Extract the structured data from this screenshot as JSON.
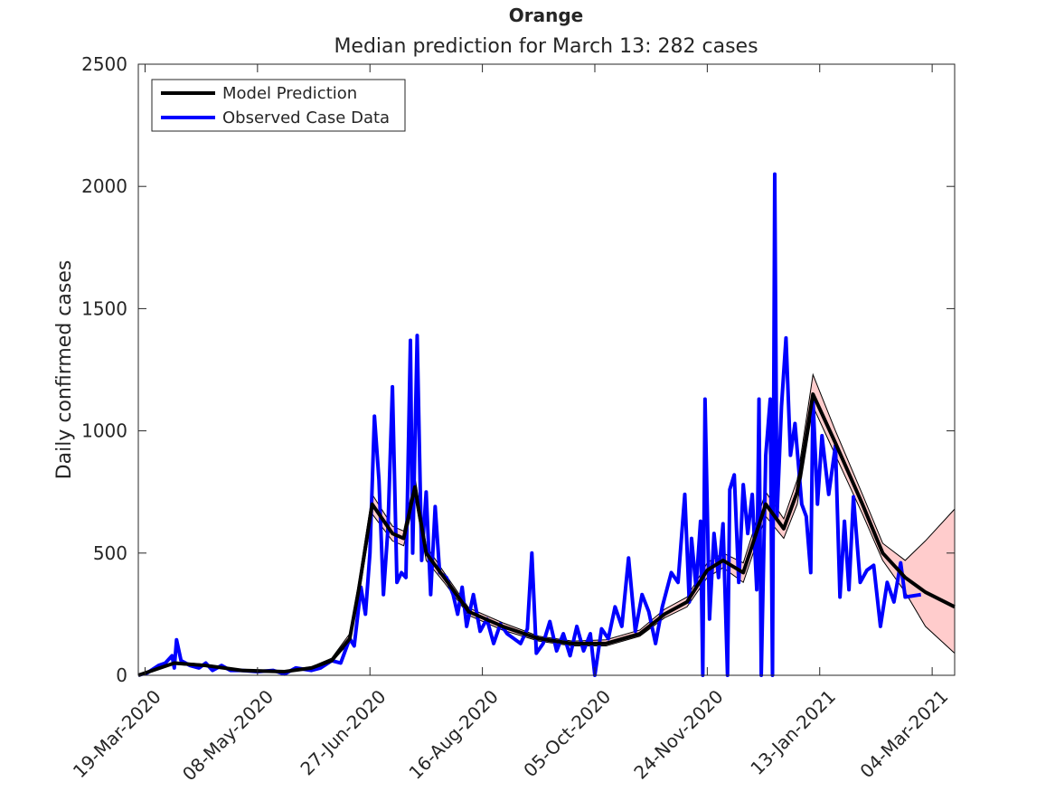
{
  "chart_data": {
    "type": "line",
    "title": "Orange",
    "subtitle": "Median prediction for March 13: 282 cases",
    "ylabel": "Daily confirmed cases",
    "xlim": [
      "2020-03-16",
      "2021-03-14"
    ],
    "xticks": [
      {
        "value": "2020-03-19",
        "label": "19-Mar-2020"
      },
      {
        "value": "2020-05-08",
        "label": "08-May-2020"
      },
      {
        "value": "2020-06-27",
        "label": "27-Jun-2020"
      },
      {
        "value": "2020-08-16",
        "label": "16-Aug-2020"
      },
      {
        "value": "2020-10-05",
        "label": "05-Oct-2020"
      },
      {
        "value": "2020-11-24",
        "label": "24-Nov-2020"
      },
      {
        "value": "2021-01-13",
        "label": "13-Jan-2021"
      },
      {
        "value": "2021-03-04",
        "label": "04-Mar-2021"
      }
    ],
    "ylim": [
      0,
      2500
    ],
    "yticks": [
      0,
      500,
      1000,
      1500,
      2000,
      2500
    ],
    "legend": "upper left",
    "series": [
      {
        "name": "Model Prediction",
        "color": "#000000",
        "x": [
          "2020-03-16",
          "2020-04-01",
          "2020-04-15",
          "2020-05-01",
          "2020-05-20",
          "2020-06-01",
          "2020-06-10",
          "2020-06-18",
          "2020-06-22",
          "2020-06-28",
          "2020-07-07",
          "2020-07-12",
          "2020-07-17",
          "2020-07-22",
          "2020-07-30",
          "2020-08-10",
          "2020-08-25",
          "2020-09-10",
          "2020-09-25",
          "2020-10-10",
          "2020-10-25",
          "2020-11-05",
          "2020-11-15",
          "2020-11-24",
          "2020-12-01",
          "2020-12-10",
          "2020-12-20",
          "2020-12-28",
          "2021-01-03",
          "2021-01-10",
          "2021-01-20",
          "2021-02-01",
          "2021-02-10",
          "2021-02-20",
          "2021-03-01",
          "2021-03-14"
        ],
        "values": [
          0,
          50,
          40,
          20,
          15,
          30,
          60,
          150,
          350,
          700,
          580,
          560,
          770,
          500,
          400,
          260,
          200,
          150,
          130,
          130,
          170,
          250,
          300,
          430,
          470,
          420,
          700,
          600,
          750,
          1150,
          950,
          700,
          500,
          400,
          340,
          280
        ],
        "lower": [
          0,
          45,
          35,
          17,
          12,
          25,
          55,
          135,
          320,
          660,
          550,
          530,
          730,
          470,
          380,
          245,
          185,
          140,
          120,
          120,
          160,
          235,
          280,
          400,
          440,
          380,
          650,
          560,
          700,
          1100,
          900,
          660,
          470,
          340,
          200,
          90
        ],
        "upper": [
          0,
          55,
          45,
          23,
          18,
          35,
          70,
          170,
          380,
          740,
          610,
          590,
          810,
          530,
          420,
          275,
          215,
          160,
          140,
          145,
          185,
          270,
          320,
          460,
          500,
          460,
          750,
          640,
          800,
          1230,
          1000,
          740,
          540,
          470,
          550,
          680
        ],
        "band_color": "#ffcccc"
      },
      {
        "name": "Observed Case Data",
        "color": "#0000ff",
        "x": [
          "2020-03-16",
          "2020-03-20",
          "2020-03-25",
          "2020-03-28",
          "2020-03-31",
          "2020-04-01",
          "2020-04-02",
          "2020-04-04",
          "2020-04-08",
          "2020-04-12",
          "2020-04-15",
          "2020-04-18",
          "2020-04-22",
          "2020-04-26",
          "2020-05-01",
          "2020-05-08",
          "2020-05-15",
          "2020-05-20",
          "2020-05-25",
          "2020-06-01",
          "2020-06-05",
          "2020-06-10",
          "2020-06-14",
          "2020-06-18",
          "2020-06-20",
          "2020-06-23",
          "2020-06-25",
          "2020-06-27",
          "2020-06-29",
          "2020-07-01",
          "2020-07-03",
          "2020-07-05",
          "2020-07-07",
          "2020-07-09",
          "2020-07-11",
          "2020-07-13",
          "2020-07-15",
          "2020-07-16",
          "2020-07-18",
          "2020-07-20",
          "2020-07-22",
          "2020-07-24",
          "2020-07-26",
          "2020-07-28",
          "2020-07-31",
          "2020-08-03",
          "2020-08-05",
          "2020-08-07",
          "2020-08-09",
          "2020-08-12",
          "2020-08-15",
          "2020-08-18",
          "2020-08-21",
          "2020-08-24",
          "2020-08-27",
          "2020-08-30",
          "2020-09-02",
          "2020-09-05",
          "2020-09-07",
          "2020-09-09",
          "2020-09-12",
          "2020-09-15",
          "2020-09-18",
          "2020-09-21",
          "2020-09-24",
          "2020-09-27",
          "2020-09-30",
          "2020-10-03",
          "2020-10-05",
          "2020-10-08",
          "2020-10-11",
          "2020-10-14",
          "2020-10-17",
          "2020-10-20",
          "2020-10-23",
          "2020-10-26",
          "2020-10-29",
          "2020-11-01",
          "2020-11-04",
          "2020-11-08",
          "2020-11-11",
          "2020-11-14",
          "2020-11-16",
          "2020-11-17",
          "2020-11-19",
          "2020-11-21",
          "2020-11-22",
          "2020-11-23",
          "2020-11-25",
          "2020-11-27",
          "2020-11-29",
          "2020-12-01",
          "2020-12-03",
          "2020-12-04",
          "2020-12-06",
          "2020-12-08",
          "2020-12-10",
          "2020-12-12",
          "2020-12-14",
          "2020-12-16",
          "2020-12-17",
          "2020-12-18",
          "2020-12-20",
          "2020-12-22",
          "2020-12-23",
          "2020-12-24",
          "2020-12-25",
          "2020-12-27",
          "2020-12-29",
          "2020-12-31",
          "2021-01-02",
          "2021-01-05",
          "2021-01-07",
          "2021-01-09",
          "2021-01-10",
          "2021-01-12",
          "2021-01-14",
          "2021-01-17",
          "2021-01-20",
          "2021-01-22",
          "2021-01-24",
          "2021-01-26",
          "2021-01-28",
          "2021-01-31",
          "2021-02-03",
          "2021-02-06",
          "2021-02-09",
          "2021-02-12",
          "2021-02-15",
          "2021-02-18",
          "2021-02-20",
          "2021-02-27"
        ],
        "values": [
          0,
          10,
          40,
          50,
          80,
          30,
          145,
          60,
          40,
          30,
          50,
          20,
          40,
          20,
          20,
          15,
          20,
          5,
          30,
          20,
          30,
          60,
          50,
          150,
          120,
          360,
          250,
          500,
          1060,
          800,
          330,
          600,
          1180,
          380,
          420,
          400,
          1370,
          500,
          1390,
          470,
          750,
          330,
          690,
          420,
          400,
          330,
          250,
          360,
          200,
          330,
          180,
          230,
          130,
          210,
          170,
          150,
          130,
          190,
          500,
          90,
          130,
          220,
          100,
          170,
          80,
          200,
          100,
          170,
          0,
          190,
          150,
          280,
          200,
          480,
          180,
          330,
          260,
          130,
          280,
          420,
          380,
          740,
          300,
          560,
          360,
          630,
          0,
          1130,
          230,
          580,
          400,
          620,
          0,
          760,
          820,
          380,
          780,
          580,
          740,
          350,
          1130,
          0,
          900,
          1130,
          0,
          2050,
          650,
          1100,
          1380,
          900,
          1030,
          700,
          650,
          420,
          1130,
          700,
          980,
          740,
          940,
          320,
          630,
          350,
          730,
          380,
          430,
          450,
          200,
          380,
          300,
          460,
          320,
          330
        ]
      }
    ]
  }
}
